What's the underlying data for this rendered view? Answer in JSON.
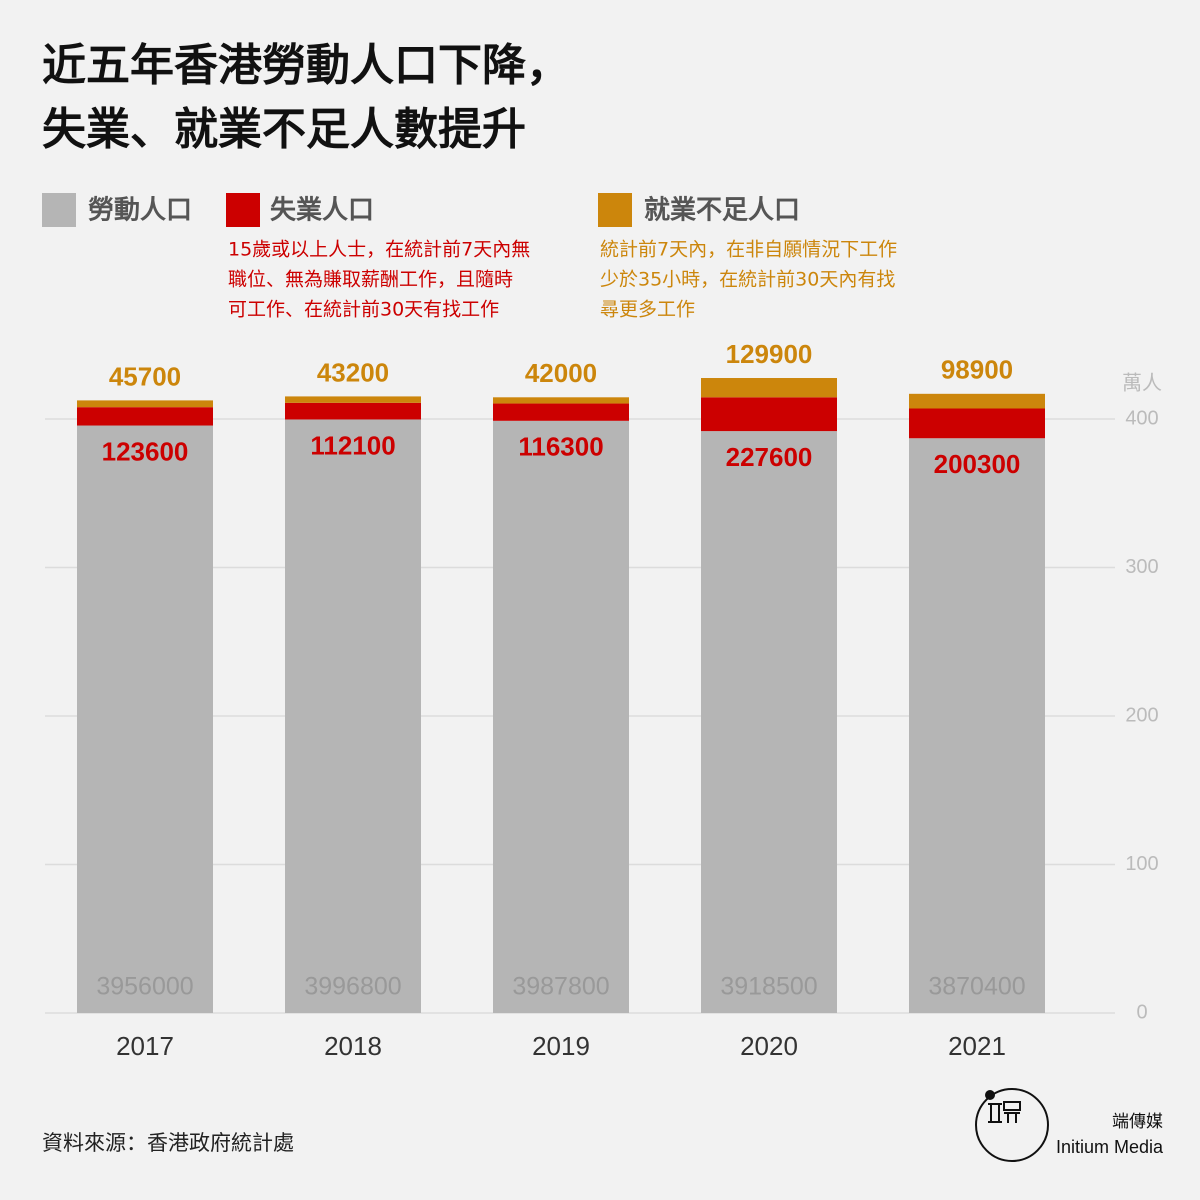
{
  "chart_data": {
    "type": "stacked-bar",
    "title": [
      "近五年香港勞動人口下降，",
      "失業、就業不足人數提升"
    ],
    "y_unit": "萬人",
    "categories": [
      "2017",
      "2018",
      "2019",
      "2020",
      "2021"
    ],
    "series": [
      {
        "name": "勞動人口",
        "color": "#b5b5b5",
        "values": [
          395.6,
          399.68,
          398.78,
          391.85,
          387.04
        ],
        "value_labels": [
          "3956000",
          "3996800",
          "3987800",
          "3918500",
          "3870400"
        ]
      },
      {
        "name": "失業人口",
        "color": "#cc0000",
        "values": [
          12.36,
          11.21,
          11.63,
          22.76,
          20.03
        ],
        "value_labels": [
          "123600",
          "112100",
          "116300",
          "227600",
          "200300"
        ],
        "description": [
          "15歲或以上人士，在統計前7天內無",
          "職位、無為賺取薪酬工作，且隨時",
          "可工作、在統計前30天有找工作"
        ]
      },
      {
        "name": "就業不足人口",
        "color": "#cc860c",
        "values": [
          4.57,
          4.32,
          4.2,
          12.99,
          9.89
        ],
        "value_labels": [
          "45700",
          "43200",
          "42000",
          "129900",
          "98900"
        ],
        "description": [
          "統計前7天內，在非自願情況下工作",
          "少於35小時，在統計前30天內有找",
          "尋更多工作"
        ]
      }
    ],
    "ylim": [
      0,
      440
    ],
    "yticks": [
      0,
      100,
      200,
      300,
      400
    ],
    "grid": true,
    "source": "資料來源：香港政府統計處",
    "publisher": {
      "name_zh": "端傳媒",
      "name_en": "Initium Media"
    }
  }
}
